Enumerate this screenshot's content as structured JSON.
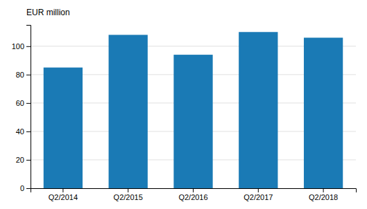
{
  "chart_data": {
    "type": "bar",
    "ylabel": "EUR million",
    "categories": [
      "Q2/2014",
      "Q2/2015",
      "Q2/2016",
      "Q2/2017",
      "Q2/2018"
    ],
    "values": [
      85,
      108,
      94,
      110,
      106
    ],
    "color": "#1a7ab5",
    "ylim": [
      0,
      115
    ],
    "yticks": [
      0,
      20,
      40,
      60,
      80,
      100
    ],
    "grid": true
  }
}
